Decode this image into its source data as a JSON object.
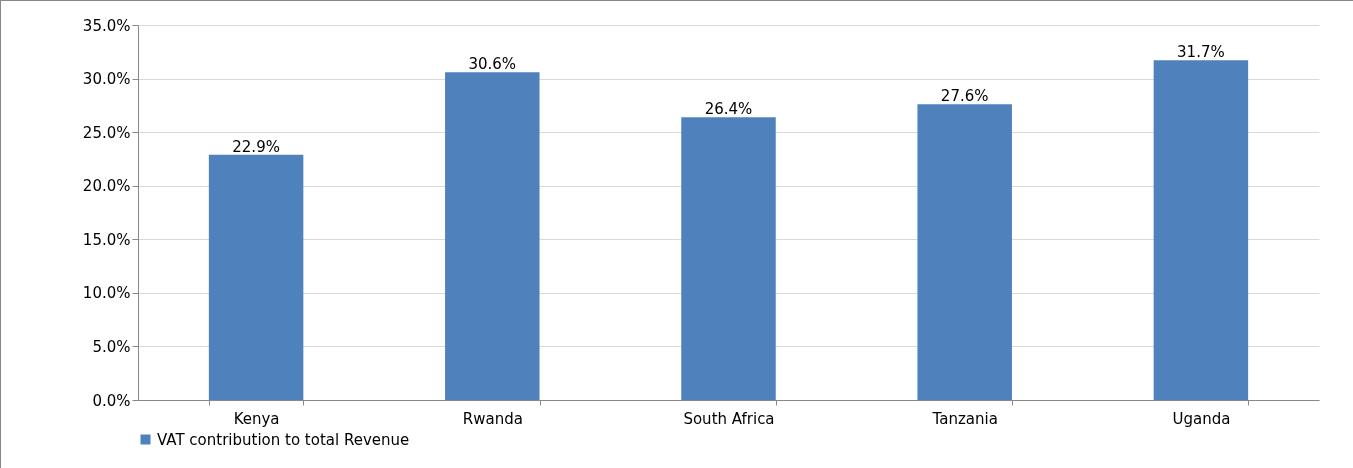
{
  "chart_data": {
    "type": "bar",
    "categories": [
      "Kenya",
      "Rwanda",
      "South Africa",
      "Tanzania",
      "Uganda"
    ],
    "series": [
      {
        "name": "VAT contribution to total Revenue",
        "color": "#4f81bd",
        "values": [
          22.9,
          30.6,
          26.4,
          27.6,
          31.7
        ],
        "value_labels": [
          "22.9%",
          "30.6%",
          "26.4%",
          "27.6%",
          "31.7%"
        ]
      }
    ],
    "ylim": [
      0,
      35
    ],
    "yticks": [
      {
        "value": 0,
        "label": "0.0%"
      },
      {
        "value": 5,
        "label": "5.0%"
      },
      {
        "value": 10,
        "label": "10.0%"
      },
      {
        "value": 15,
        "label": "15.0%"
      },
      {
        "value": 20,
        "label": "20.0%"
      },
      {
        "value": 25,
        "label": "25.0%"
      },
      {
        "value": 30,
        "label": "30.0%"
      },
      {
        "value": 35,
        "label": "35.0%"
      }
    ],
    "grid": "y",
    "legend": "bottom"
  }
}
